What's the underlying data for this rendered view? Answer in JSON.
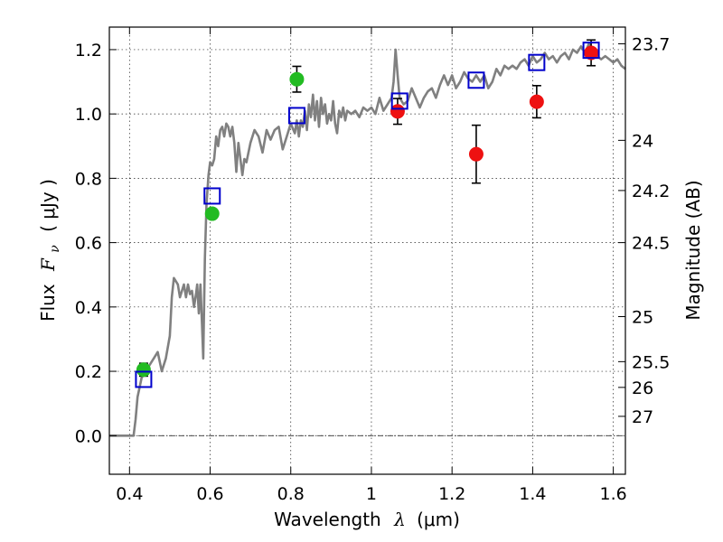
{
  "chart_data": {
    "type": "scatter",
    "title": "",
    "xlabel": {
      "prefix": "Wavelength",
      "symbol": "λ",
      "unit": "(μm)"
    },
    "ylabel": {
      "prefix": "Flux",
      "symbol": "F",
      "subscript": "ν",
      "unit": "( μJy )"
    },
    "y2label": "Magnitude (AB)",
    "xlim": [
      0.35,
      1.63
    ],
    "ylim": [
      -0.12,
      1.27
    ],
    "xticks": [
      0.4,
      0.6,
      0.8,
      1.0,
      1.2,
      1.4,
      1.6
    ],
    "xtick_labels": [
      "0.4",
      "0.6",
      "0.8",
      "1",
      "1.2",
      "1.4",
      "1.6"
    ],
    "yticks": [
      0.0,
      0.2,
      0.4,
      0.6,
      0.8,
      1.0,
      1.2
    ],
    "ytick_labels": [
      "0.0",
      "0.2",
      "0.4",
      "0.6",
      "0.8",
      "1.0",
      "1.2"
    ],
    "y2ticks": [
      {
        "flux": 1.218,
        "label": "23.7"
      },
      {
        "flux": 0.918,
        "label": "24"
      },
      {
        "flux": 0.762,
        "label": "24.2"
      },
      {
        "flux": 0.6,
        "label": "24.5"
      },
      {
        "flux": 0.37,
        "label": "25"
      },
      {
        "flux": 0.23,
        "label": "25.5"
      },
      {
        "flux": 0.15,
        "label": "26"
      },
      {
        "flux": 0.06,
        "label": "27"
      }
    ],
    "grid": true,
    "zero_line": true,
    "colors": {
      "model": "#808080",
      "green": "#22bb22",
      "red": "#ee1111",
      "square": "#0000cc",
      "errorbar": "#000000"
    },
    "series": [
      {
        "name": "model spectrum",
        "type": "line",
        "points": [
          [
            0.35,
            0.0
          ],
          [
            0.41,
            0.0
          ],
          [
            0.415,
            0.05
          ],
          [
            0.42,
            0.12
          ],
          [
            0.43,
            0.18
          ],
          [
            0.44,
            0.2
          ],
          [
            0.45,
            0.22
          ],
          [
            0.46,
            0.24
          ],
          [
            0.47,
            0.26
          ],
          [
            0.48,
            0.2
          ],
          [
            0.49,
            0.24
          ],
          [
            0.5,
            0.31
          ],
          [
            0.505,
            0.43
          ],
          [
            0.51,
            0.49
          ],
          [
            0.515,
            0.48
          ],
          [
            0.52,
            0.47
          ],
          [
            0.525,
            0.43
          ],
          [
            0.53,
            0.45
          ],
          [
            0.535,
            0.47
          ],
          [
            0.54,
            0.43
          ],
          [
            0.545,
            0.47
          ],
          [
            0.55,
            0.44
          ],
          [
            0.555,
            0.45
          ],
          [
            0.56,
            0.4
          ],
          [
            0.565,
            0.44
          ],
          [
            0.568,
            0.47
          ],
          [
            0.572,
            0.38
          ],
          [
            0.576,
            0.47
          ],
          [
            0.58,
            0.34
          ],
          [
            0.583,
            0.24
          ],
          [
            0.587,
            0.55
          ],
          [
            0.591,
            0.72
          ],
          [
            0.596,
            0.81
          ],
          [
            0.6,
            0.85
          ],
          [
            0.605,
            0.84
          ],
          [
            0.61,
            0.86
          ],
          [
            0.615,
            0.93
          ],
          [
            0.62,
            0.9
          ],
          [
            0.625,
            0.95
          ],
          [
            0.63,
            0.96
          ],
          [
            0.635,
            0.93
          ],
          [
            0.64,
            0.97
          ],
          [
            0.645,
            0.96
          ],
          [
            0.65,
            0.93
          ],
          [
            0.655,
            0.96
          ],
          [
            0.66,
            0.91
          ],
          [
            0.665,
            0.82
          ],
          [
            0.67,
            0.91
          ],
          [
            0.675,
            0.86
          ],
          [
            0.68,
            0.81
          ],
          [
            0.685,
            0.86
          ],
          [
            0.69,
            0.85
          ],
          [
            0.7,
            0.91
          ],
          [
            0.71,
            0.95
          ],
          [
            0.72,
            0.93
          ],
          [
            0.73,
            0.88
          ],
          [
            0.74,
            0.95
          ],
          [
            0.75,
            0.92
          ],
          [
            0.76,
            0.95
          ],
          [
            0.77,
            0.96
          ],
          [
            0.78,
            0.89
          ],
          [
            0.79,
            0.93
          ],
          [
            0.8,
            0.97
          ],
          [
            0.81,
            0.94
          ],
          [
            0.815,
            0.98
          ],
          [
            0.82,
            0.93
          ],
          [
            0.825,
            0.98
          ],
          [
            0.83,
            0.96
          ],
          [
            0.835,
            1.01
          ],
          [
            0.84,
            0.95
          ],
          [
            0.845,
            1.03
          ],
          [
            0.85,
            0.99
          ],
          [
            0.855,
            1.06
          ],
          [
            0.86,
            0.98
          ],
          [
            0.865,
            1.04
          ],
          [
            0.87,
            0.96
          ],
          [
            0.875,
            1.05
          ],
          [
            0.88,
            1.0
          ],
          [
            0.885,
            1.03
          ],
          [
            0.89,
            0.97
          ],
          [
            0.895,
            1.0
          ],
          [
            0.9,
            0.98
          ],
          [
            0.905,
            1.04
          ],
          [
            0.91,
            0.97
          ],
          [
            0.915,
            0.94
          ],
          [
            0.92,
            1.01
          ],
          [
            0.925,
            0.99
          ],
          [
            0.93,
            1.02
          ],
          [
            0.935,
            0.98
          ],
          [
            0.94,
            1.01
          ],
          [
            0.95,
            1.0
          ],
          [
            0.96,
            1.01
          ],
          [
            0.97,
            0.99
          ],
          [
            0.98,
            1.02
          ],
          [
            0.99,
            1.01
          ],
          [
            1.0,
            1.02
          ],
          [
            1.01,
            1.0
          ],
          [
            1.02,
            1.05
          ],
          [
            1.03,
            1.01
          ],
          [
            1.04,
            1.03
          ],
          [
            1.05,
            1.05
          ],
          [
            1.055,
            1.1
          ],
          [
            1.06,
            1.2
          ],
          [
            1.065,
            1.12
          ],
          [
            1.07,
            1.05
          ],
          [
            1.08,
            1.03
          ],
          [
            1.09,
            1.04
          ],
          [
            1.1,
            1.08
          ],
          [
            1.11,
            1.05
          ],
          [
            1.12,
            1.02
          ],
          [
            1.13,
            1.05
          ],
          [
            1.14,
            1.07
          ],
          [
            1.15,
            1.08
          ],
          [
            1.16,
            1.05
          ],
          [
            1.17,
            1.09
          ],
          [
            1.18,
            1.12
          ],
          [
            1.19,
            1.09
          ],
          [
            1.2,
            1.12
          ],
          [
            1.21,
            1.08
          ],
          [
            1.22,
            1.1
          ],
          [
            1.23,
            1.13
          ],
          [
            1.24,
            1.11
          ],
          [
            1.25,
            1.1
          ],
          [
            1.26,
            1.12
          ],
          [
            1.27,
            1.1
          ],
          [
            1.28,
            1.12
          ],
          [
            1.29,
            1.08
          ],
          [
            1.3,
            1.1
          ],
          [
            1.31,
            1.14
          ],
          [
            1.32,
            1.12
          ],
          [
            1.33,
            1.15
          ],
          [
            1.34,
            1.14
          ],
          [
            1.35,
            1.15
          ],
          [
            1.36,
            1.14
          ],
          [
            1.37,
            1.16
          ],
          [
            1.38,
            1.17
          ],
          [
            1.39,
            1.15
          ],
          [
            1.4,
            1.18
          ],
          [
            1.41,
            1.16
          ],
          [
            1.42,
            1.17
          ],
          [
            1.43,
            1.19
          ],
          [
            1.44,
            1.17
          ],
          [
            1.45,
            1.18
          ],
          [
            1.46,
            1.16
          ],
          [
            1.47,
            1.18
          ],
          [
            1.48,
            1.19
          ],
          [
            1.49,
            1.17
          ],
          [
            1.5,
            1.2
          ],
          [
            1.51,
            1.19
          ],
          [
            1.52,
            1.21
          ],
          [
            1.53,
            1.19
          ],
          [
            1.54,
            1.22
          ],
          [
            1.55,
            1.2
          ],
          [
            1.56,
            1.18
          ],
          [
            1.57,
            1.17
          ],
          [
            1.58,
            1.18
          ],
          [
            1.59,
            1.17
          ],
          [
            1.6,
            1.16
          ],
          [
            1.61,
            1.17
          ],
          [
            1.62,
            1.15
          ],
          [
            1.63,
            1.14
          ]
        ]
      },
      {
        "name": "green photometry",
        "type": "scatter",
        "marker": "circle",
        "points": [
          {
            "x": 0.435,
            "y": 0.205,
            "yerr": 0.02
          },
          {
            "x": 0.605,
            "y": 0.69,
            "yerr": 0.0
          },
          {
            "x": 0.815,
            "y": 1.108,
            "yerr": 0.04
          }
        ]
      },
      {
        "name": "red photometry",
        "type": "scatter",
        "marker": "circle",
        "points": [
          {
            "x": 1.065,
            "y": 1.008,
            "yerr": 0.04
          },
          {
            "x": 1.26,
            "y": 0.875,
            "yerr": 0.09
          },
          {
            "x": 1.41,
            "y": 1.038,
            "yerr": 0.05
          },
          {
            "x": 1.545,
            "y": 1.19,
            "yerr": 0.04
          }
        ]
      },
      {
        "name": "model photometry",
        "type": "scatter",
        "marker": "square",
        "points": [
          {
            "x": 0.435,
            "y": 0.175
          },
          {
            "x": 0.605,
            "y": 0.745
          },
          {
            "x": 0.815,
            "y": 0.995
          },
          {
            "x": 1.07,
            "y": 1.04
          },
          {
            "x": 1.26,
            "y": 1.105
          },
          {
            "x": 1.41,
            "y": 1.16
          },
          {
            "x": 1.545,
            "y": 1.198
          }
        ]
      }
    ]
  }
}
